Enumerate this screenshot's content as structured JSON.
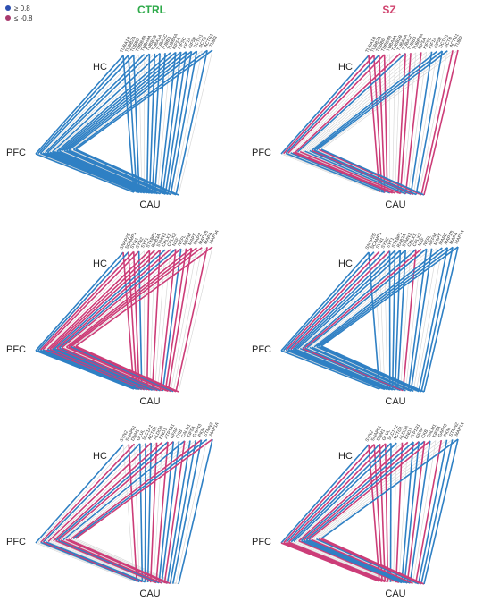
{
  "header": {
    "left": "CTRL",
    "right": "SZ"
  },
  "legend": [
    {
      "label": "≥ 0.8"
    },
    {
      "label": "≤ -0.8"
    }
  ],
  "panels": [
    {
      "axes": {
        "hc": "HC",
        "pfc": "PFC",
        "cau": "CAU"
      },
      "genes": [
        "TUBA1B",
        "TUBB2A",
        "TUBB6",
        "TUBB4B",
        "TUBA4A",
        "TUBB2B",
        "TUBA1A",
        "TUBA1C",
        "TUBB3",
        "TUBB4A",
        "KIF5A",
        "KIF5C",
        "KIF1A",
        "KIF5B",
        "DCTN1",
        "ACTB",
        "ACTG1",
        "TUBB"
      ]
    },
    {
      "axes": {
        "hc": "HC",
        "pfc": "PFC",
        "cau": "CAU"
      },
      "genes": [
        "TUBA1B",
        "TUBB2A",
        "TUBB6",
        "TUBB4B",
        "TUBA4A",
        "TUBB2B",
        "TUBA1A",
        "TUBA1C",
        "TUBB3",
        "TUBB4A",
        "KIF5A",
        "KIF5C",
        "KIF1A",
        "KIF5B",
        "DCTN1",
        "ACTB",
        "ACTG1",
        "TUBB"
      ]
    },
    {
      "axes": {
        "hc": "HC",
        "pfc": "PFC",
        "cau": "CAU"
      },
      "genes": [
        "SNAP25",
        "SCAMP1",
        "SYN1",
        "SYN2",
        "SYT1",
        "STXBP1",
        "RAB3A",
        "STMN1",
        "CPLX1",
        "CPLX2",
        "NSF",
        "NEFL",
        "NEFM",
        "MAPT",
        "MAP2",
        "MAP1B",
        "MAP4",
        "MAP1A"
      ]
    },
    {
      "axes": {
        "hc": "HC",
        "pfc": "PFC",
        "cau": "CAU"
      },
      "genes": [
        "SNAP25",
        "SCAMP1",
        "SYN1",
        "SYN2",
        "SYT1",
        "STXBP1",
        "RAB3A",
        "STMN1",
        "CPLX1",
        "CPLX2",
        "NSF",
        "NEFL",
        "NEFM",
        "MAPT",
        "MAP2",
        "MAP1B",
        "MAP4",
        "MAP1A"
      ]
    },
    {
      "axes": {
        "hc": "HC",
        "pfc": "PFC",
        "cau": "CAU"
      },
      "genes": [
        "SYN2",
        "SNAP91",
        "DNM1",
        "GLUL",
        "SLC1A2",
        "ACTG1",
        "ALDOA",
        "ENO1",
        "ATP1B1",
        "GFAP",
        "CKB",
        "CALM1",
        "KIF5A",
        "GAP43",
        "PKM",
        "STMN2",
        "MAP1A"
      ]
    },
    {
      "axes": {
        "hc": "HC",
        "pfc": "PFC",
        "cau": "CAU"
      },
      "genes": [
        "SYN2",
        "SNAP91",
        "DNM1",
        "GLUL",
        "SLC1A2",
        "ACTG1",
        "ALDOA",
        "ENO1",
        "ATP1B1",
        "GFAP",
        "CKB",
        "CALM1",
        "KIF5A",
        "GAP43",
        "PKM",
        "STMN2",
        "MAP1A"
      ]
    }
  ]
}
